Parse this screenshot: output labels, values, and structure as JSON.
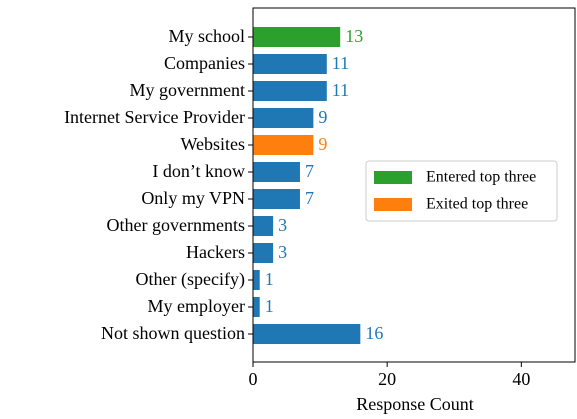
{
  "chart_data": {
    "type": "barh",
    "categories": [
      "My school",
      "Companies",
      "My government",
      "Internet Service Provider",
      "Websites",
      "I don’t know",
      "Only my VPN",
      "Other governments",
      "Hackers",
      "Other (specify)",
      "My employer",
      "Not shown question"
    ],
    "values": [
      13,
      11,
      11,
      9,
      9,
      7,
      7,
      3,
      3,
      1,
      1,
      16
    ],
    "colors": [
      "#2ca02c",
      "#1f77b4",
      "#1f77b4",
      "#1f77b4",
      "#ff7f0e",
      "#1f77b4",
      "#1f77b4",
      "#1f77b4",
      "#1f77b4",
      "#1f77b4",
      "#1f77b4",
      "#1f77b4"
    ],
    "xlim": [
      0,
      48
    ],
    "xticks": [
      0,
      20,
      40
    ],
    "xlabel": "Response Count",
    "legend": [
      {
        "name": "Entered top three",
        "color": "#2ca02c"
      },
      {
        "name": "Exited top three",
        "color": "#ff7f0e"
      }
    ],
    "legend_position": "center right"
  }
}
